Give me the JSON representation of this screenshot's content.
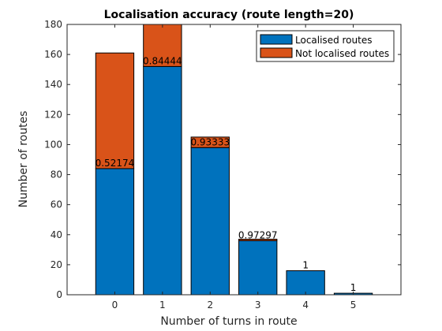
{
  "chart_data": {
    "type": "bar",
    "stacked": true,
    "title": "Localisation accuracy (route length=20)",
    "xlabel": "Number of turns in route",
    "ylabel": "Number of routes",
    "categories": [
      "0",
      "1",
      "2",
      "3",
      "4",
      "5"
    ],
    "xlim": [
      -1,
      6
    ],
    "ylim": [
      0,
      180
    ],
    "yticks": [
      0,
      20,
      40,
      60,
      80,
      100,
      120,
      140,
      160,
      180
    ],
    "grid": false,
    "legend": "top-right",
    "series": [
      {
        "name": "Localised routes",
        "color": "#0072BD",
        "values": [
          84,
          152,
          98,
          36,
          16,
          1
        ]
      },
      {
        "name": "Not localised routes",
        "color": "#D95319",
        "values": [
          77,
          28,
          7,
          1,
          0,
          0
        ]
      }
    ],
    "data_labels": [
      "0.52174",
      "0.84444",
      "0.93333",
      "0.97297",
      "1",
      "1"
    ]
  }
}
